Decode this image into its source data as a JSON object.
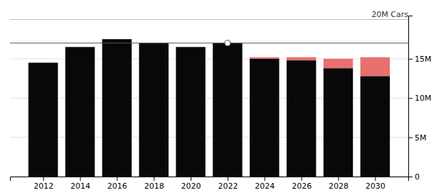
{
  "chart_data": {
    "type": "bar",
    "stacked": true,
    "grid": true,
    "x": [
      2012,
      2014,
      2016,
      2018,
      2020,
      2022,
      2024,
      2026,
      2028,
      2030
    ],
    "series": [
      {
        "color": "#080808",
        "values": [
          14.5,
          16.5,
          17.5,
          17.0,
          16.5,
          17.0,
          15.0,
          14.8,
          13.8,
          12.8
        ]
      },
      {
        "color": "#e8706e",
        "values": [
          0,
          0,
          0,
          0,
          0,
          0,
          0.2,
          0.4,
          1.2,
          2.4
        ]
      }
    ],
    "xlim": [
      2010.2,
      2031.8
    ],
    "xticks": [
      2012,
      2014,
      2016,
      2018,
      2020,
      2022,
      2024,
      2026,
      2028,
      2030
    ],
    "ylim": [
      0,
      20.5
    ],
    "yticks": [
      0,
      {
        "value": 5,
        "label": "5M"
      },
      {
        "value": 10,
        "label": "10M"
      },
      {
        "value": 15,
        "label": "15M"
      }
    ],
    "hlines": [
      {
        "y": 20,
        "color": "#bbbbbb",
        "label": "20M Cars"
      },
      {
        "y": 17.0,
        "color": "#555555"
      }
    ],
    "points": [
      {
        "x": 2022,
        "y": 17.0
      }
    ]
  }
}
